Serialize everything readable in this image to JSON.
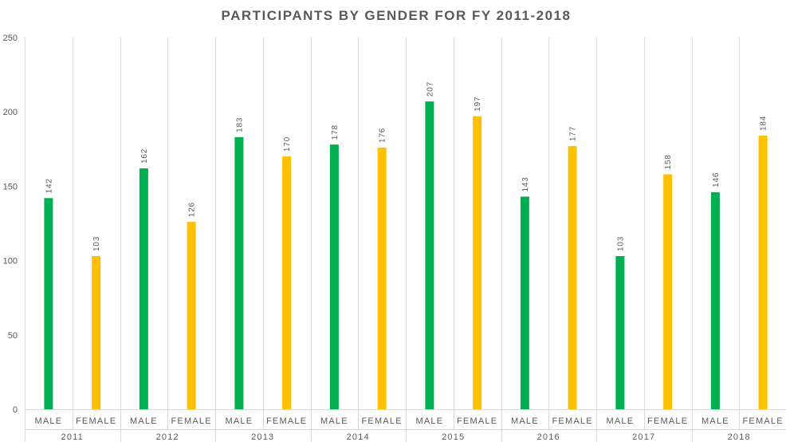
{
  "chart_data": {
    "type": "bar",
    "title": "PARTICIPANTS BY GENDER FOR FY 2011-2018",
    "ylim": [
      0,
      250
    ],
    "yticks": [
      0,
      50,
      100,
      150,
      200,
      250
    ],
    "groups": [
      "2011",
      "2012",
      "2013",
      "2014",
      "2015",
      "2016",
      "2017",
      "2018"
    ],
    "categories": [
      "MALE",
      "FEMALE"
    ],
    "colors": {
      "MALE": "#00b050",
      "FEMALE": "#ffc000"
    },
    "values": [
      [
        142,
        103
      ],
      [
        162,
        126
      ],
      [
        183,
        170
      ],
      [
        178,
        176
      ],
      [
        207,
        197
      ],
      [
        143,
        177
      ],
      [
        103,
        158
      ],
      [
        146,
        184
      ]
    ],
    "data_labels": true,
    "grid": "vertical",
    "legend": "none"
  }
}
